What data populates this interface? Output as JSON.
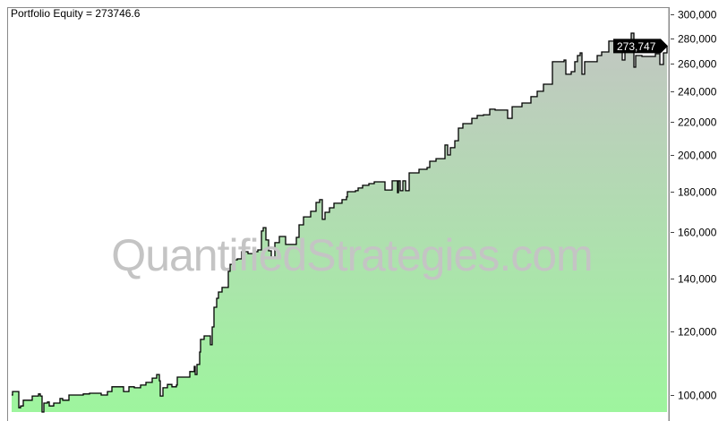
{
  "title": "Portfolio Equity = 273746.6",
  "watermark": "QuantifiedStrategies.com",
  "chart_data": {
    "type": "area",
    "title": "Portfolio Equity = 273746.6",
    "xlabel": "",
    "ylabel": "",
    "y_scale": "log",
    "ylim": [
      95200,
      306200
    ],
    "y_ticks": [
      100000,
      120000,
      140000,
      160000,
      180000,
      200000,
      220000,
      240000,
      260000,
      280000,
      300000
    ],
    "y_tick_labels": [
      "100,000",
      "120,000",
      "140,000",
      "160,000",
      "180,000",
      "200,000",
      "220,000",
      "240,000",
      "260,000",
      "280,000",
      "300,000"
    ],
    "y_axis_position": "right",
    "grid": false,
    "last_value_label": "273,747",
    "colors": {
      "line": "#000000",
      "fill_bottom": "#9ef59e",
      "fill_top": "#c2c6c2",
      "last_value_bg": "#000000"
    },
    "series": [
      {
        "name": "Portfolio Equity",
        "step": true,
        "points": [
          [
            0,
            100000
          ],
          [
            1,
            101000
          ],
          [
            8,
            101000
          ],
          [
            8,
            96400
          ],
          [
            10,
            96900
          ],
          [
            13,
            98500
          ],
          [
            22,
            98500
          ],
          [
            23,
            99700
          ],
          [
            30,
            100300
          ],
          [
            32,
            99700
          ],
          [
            34,
            95200
          ],
          [
            36,
            97700
          ],
          [
            40,
            98000
          ],
          [
            42,
            96900
          ],
          [
            47,
            97700
          ],
          [
            54,
            99000
          ],
          [
            57,
            98500
          ],
          [
            64,
            100000
          ],
          [
            74,
            100000
          ],
          [
            80,
            100300
          ],
          [
            87,
            100500
          ],
          [
            94,
            100500
          ],
          [
            100,
            100000
          ],
          [
            107,
            101000
          ],
          [
            112,
            102400
          ],
          [
            119,
            102400
          ],
          [
            125,
            101000
          ],
          [
            131,
            102400
          ],
          [
            137,
            102100
          ],
          [
            144,
            102900
          ],
          [
            150,
            103700
          ],
          [
            157,
            105000
          ],
          [
            162,
            106100
          ],
          [
            165,
            104200
          ],
          [
            166,
            99700
          ],
          [
            169,
            102100
          ],
          [
            174,
            103100
          ],
          [
            179,
            102400
          ],
          [
            184,
            102900
          ],
          [
            185,
            105300
          ],
          [
            196,
            105300
          ],
          [
            199,
            107000
          ],
          [
            204,
            108600
          ],
          [
            205,
            106100
          ],
          [
            207,
            109200
          ],
          [
            210,
            113200
          ],
          [
            211,
            117400
          ],
          [
            215,
            118600
          ],
          [
            220,
            118600
          ],
          [
            222,
            115600
          ],
          [
            224,
            121700
          ],
          [
            226,
            128800
          ],
          [
            229,
            132200
          ],
          [
            231,
            134600
          ],
          [
            235,
            136400
          ],
          [
            240,
            136400
          ],
          [
            242,
            142900
          ],
          [
            244,
            145800
          ],
          [
            249,
            147700
          ],
          [
            252,
            148100
          ],
          [
            257,
            151200
          ],
          [
            264,
            150400
          ],
          [
            272,
            151200
          ],
          [
            275,
            152000
          ],
          [
            279,
            160500
          ],
          [
            281,
            162100
          ],
          [
            284,
            156400
          ],
          [
            287,
            151600
          ],
          [
            290,
            148500
          ],
          [
            294,
            155200
          ],
          [
            299,
            158000
          ],
          [
            305,
            158000
          ],
          [
            306,
            154400
          ],
          [
            315,
            154400
          ],
          [
            318,
            157600
          ],
          [
            321,
            163400
          ],
          [
            326,
            167200
          ],
          [
            332,
            167200
          ],
          [
            334,
            169900
          ],
          [
            340,
            174300
          ],
          [
            344,
            175700
          ],
          [
            347,
            166000
          ],
          [
            350,
            169400
          ],
          [
            355,
            171600
          ],
          [
            360,
            173900
          ],
          [
            369,
            175700
          ],
          [
            374,
            177100
          ],
          [
            375,
            179800
          ],
          [
            384,
            180300
          ],
          [
            387,
            181700
          ],
          [
            392,
            183100
          ],
          [
            399,
            184000
          ],
          [
            405,
            185000
          ],
          [
            415,
            185000
          ],
          [
            417,
            180700
          ],
          [
            425,
            185500
          ],
          [
            431,
            179300
          ],
          [
            432,
            185500
          ],
          [
            434,
            180300
          ],
          [
            437,
            185500
          ],
          [
            440,
            180300
          ],
          [
            441,
            180300
          ],
          [
            444,
            189800
          ],
          [
            454,
            189800
          ],
          [
            455,
            191800
          ],
          [
            464,
            192800
          ],
          [
            467,
            196300
          ],
          [
            474,
            197800
          ],
          [
            480,
            197800
          ],
          [
            484,
            205700
          ],
          [
            487,
            199900
          ],
          [
            490,
            204100
          ],
          [
            495,
            208300
          ],
          [
            499,
            216000
          ],
          [
            504,
            218800
          ],
          [
            510,
            218800
          ],
          [
            514,
            222200
          ],
          [
            520,
            224000
          ],
          [
            527,
            224500
          ],
          [
            534,
            228100
          ],
          [
            539,
            228100
          ],
          [
            540,
            227500
          ],
          [
            548,
            227500
          ],
          [
            554,
            222200
          ],
          [
            559,
            229800
          ],
          [
            570,
            232200
          ],
          [
            580,
            236500
          ],
          [
            587,
            240200
          ],
          [
            594,
            245200
          ],
          [
            604,
            245200
          ],
          [
            604,
            261600
          ],
          [
            610,
            261600
          ],
          [
            617,
            262900
          ],
          [
            619,
            252300
          ],
          [
            625,
            254200
          ],
          [
            629,
            261600
          ],
          [
            632,
            266300
          ],
          [
            635,
            268400
          ],
          [
            637,
            252300
          ],
          [
            640,
            261600
          ],
          [
            649,
            261600
          ],
          [
            654,
            266300
          ],
          [
            659,
            269100
          ],
          [
            667,
            277600
          ],
          [
            674,
            278300
          ],
          [
            679,
            278300
          ],
          [
            682,
            262900
          ],
          [
            685,
            276900
          ],
          [
            692,
            284100
          ],
          [
            695,
            257500
          ],
          [
            697,
            266300
          ],
          [
            704,
            265600
          ],
          [
            707,
            265600
          ],
          [
            719,
            267700
          ],
          [
            724,
            259500
          ],
          [
            728,
            268400
          ],
          [
            732,
            273747
          ]
        ]
      }
    ]
  }
}
